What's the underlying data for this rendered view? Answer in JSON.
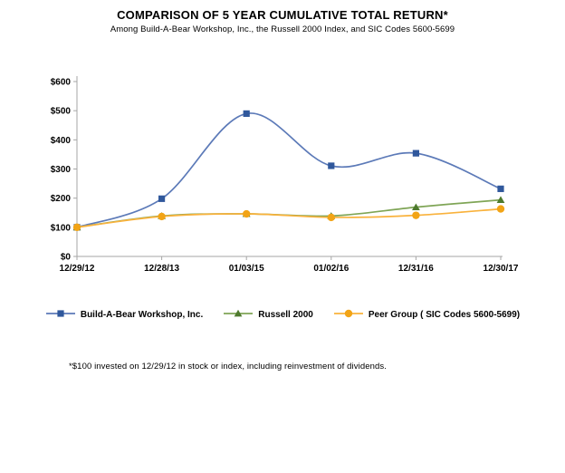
{
  "header": {
    "title": "COMPARISON OF 5 YEAR CUMULATIVE TOTAL RETURN*",
    "subtitle": "Among Build-A-Bear Workshop, Inc., the Russell 2000 Index, and SIC Codes 5600-5699"
  },
  "chart_data": {
    "type": "line",
    "smooth": true,
    "grid": false,
    "legend_position": "bottom",
    "categories": [
      "12/29/12",
      "12/28/13",
      "01/03/15",
      "01/02/16",
      "12/31/16",
      "12/30/17"
    ],
    "series": [
      {
        "name": "Build-A-Bear Workshop, Inc.",
        "values": [
          100,
          198,
          490,
          311,
          354,
          232
        ],
        "line_color": "#5C7AB8",
        "marker_color": "#30589C",
        "marker": "square"
      },
      {
        "name": "Russell 2000",
        "values": [
          100,
          139,
          146,
          139,
          169,
          194
        ],
        "line_color": "#7FA556",
        "marker_color": "#4E7A2E",
        "marker": "triangle"
      },
      {
        "name": "Peer Group ( SIC Codes 5600-5699)",
        "values": [
          100,
          137,
          146,
          134,
          141,
          163
        ],
        "line_color": "#F9B23C",
        "marker_color": "#F2A416",
        "marker": "circle"
      }
    ],
    "ylim": [
      0,
      600
    ],
    "ytick_step": 100,
    "ytick_labels": [
      "$0",
      "$100",
      "$200",
      "$300",
      "$400",
      "$500",
      "$600"
    ],
    "axis_color": "#A6A6A6",
    "text_color": "#000000"
  },
  "footnote": "*$100 invested on 12/29/12 in stock or index, including reinvestment of dividends."
}
